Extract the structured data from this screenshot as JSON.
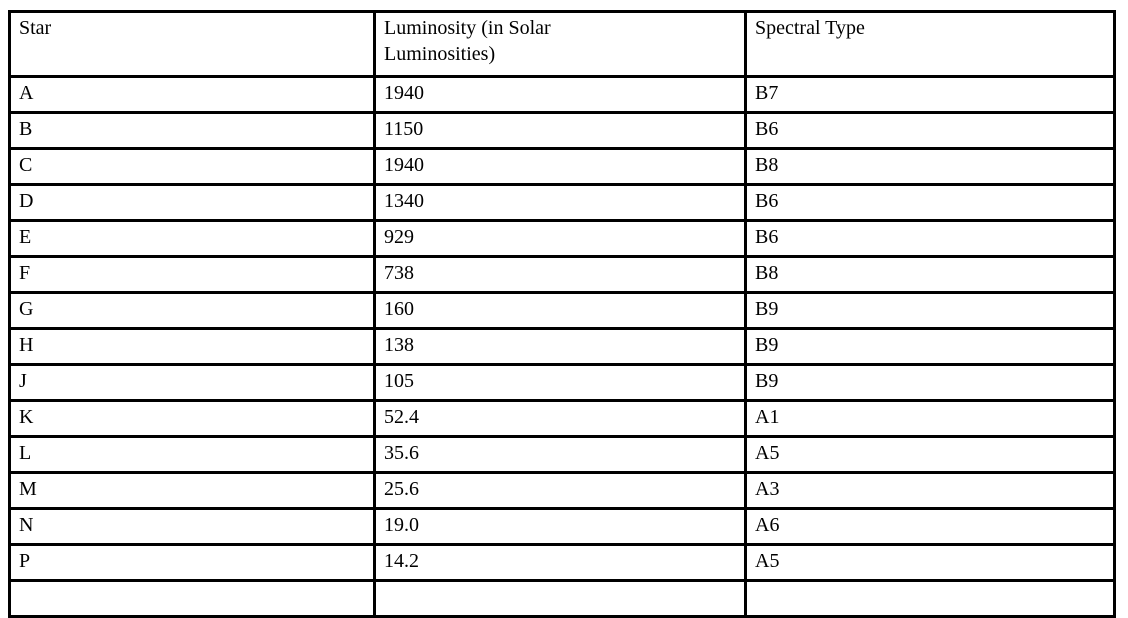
{
  "table": {
    "columns": [
      "Star",
      "Luminosity (in Solar Luminosities)",
      "Spectral Type"
    ],
    "header": {
      "star": "Star",
      "luminosity": [
        "Luminosity (in Solar",
        "Luminosities)"
      ],
      "spectral_type": "Spectral Type"
    },
    "rows": [
      {
        "star": "A",
        "luminosity": "1940",
        "spectral_type": "B7"
      },
      {
        "star": "B",
        "luminosity": "1150",
        "spectral_type": "B6"
      },
      {
        "star": "C",
        "luminosity": "1940",
        "spectral_type": "B8"
      },
      {
        "star": "D",
        "luminosity": "1340",
        "spectral_type": "B6"
      },
      {
        "star": "E",
        "luminosity": "929",
        "spectral_type": "B6"
      },
      {
        "star": "F",
        "luminosity": "738",
        "spectral_type": "B8"
      },
      {
        "star": "G",
        "luminosity": "160",
        "spectral_type": "B9"
      },
      {
        "star": "H",
        "luminosity": "138",
        "spectral_type": "B9"
      },
      {
        "star": "J",
        "luminosity": "105",
        "spectral_type": "B9"
      },
      {
        "star": "K",
        "luminosity": "52.4",
        "spectral_type": "A1"
      },
      {
        "star": "L",
        "luminosity": "35.6",
        "spectral_type": "A5"
      },
      {
        "star": "M",
        "luminosity": "25.6",
        "spectral_type": "A3"
      },
      {
        "star": "N",
        "luminosity": "19.0",
        "spectral_type": "A6"
      },
      {
        "star": "P",
        "luminosity": "14.2",
        "spectral_type": "A5"
      }
    ],
    "partial_row": {
      "star": "",
      "luminosity": "",
      "spectral_type": ""
    },
    "colors": {
      "border": "#000000",
      "text": "#000000",
      "background": "#ffffff"
    }
  }
}
